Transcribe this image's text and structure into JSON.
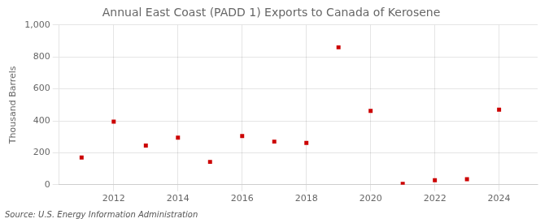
{
  "chart_data": {
    "type": "scatter",
    "title": "Annual East Coast (PADD 1) Exports to Canada of Kerosene",
    "ylabel": "Thousand Barrels",
    "annotations": [
      "Source: U.S. Energy Information Administration"
    ],
    "x": [
      2011,
      2012,
      2013,
      2014,
      2015,
      2016,
      2017,
      2018,
      2019,
      2020,
      2021,
      2022,
      2023,
      2024
    ],
    "values": [
      170,
      395,
      245,
      295,
      143,
      305,
      270,
      262,
      860,
      462,
      5,
      28,
      35,
      470
    ],
    "color": "#cc0000",
    "marker": "square",
    "xlim": [
      2010.3,
      2025.2
    ],
    "xticks": [
      2012,
      2014,
      2016,
      2018,
      2020,
      2022,
      2024
    ],
    "ylim": [
      0,
      1000
    ],
    "yticks": [
      0,
      200,
      400,
      600,
      800,
      {
        "value": 1000,
        "label": "1,000"
      }
    ],
    "grid": true
  }
}
